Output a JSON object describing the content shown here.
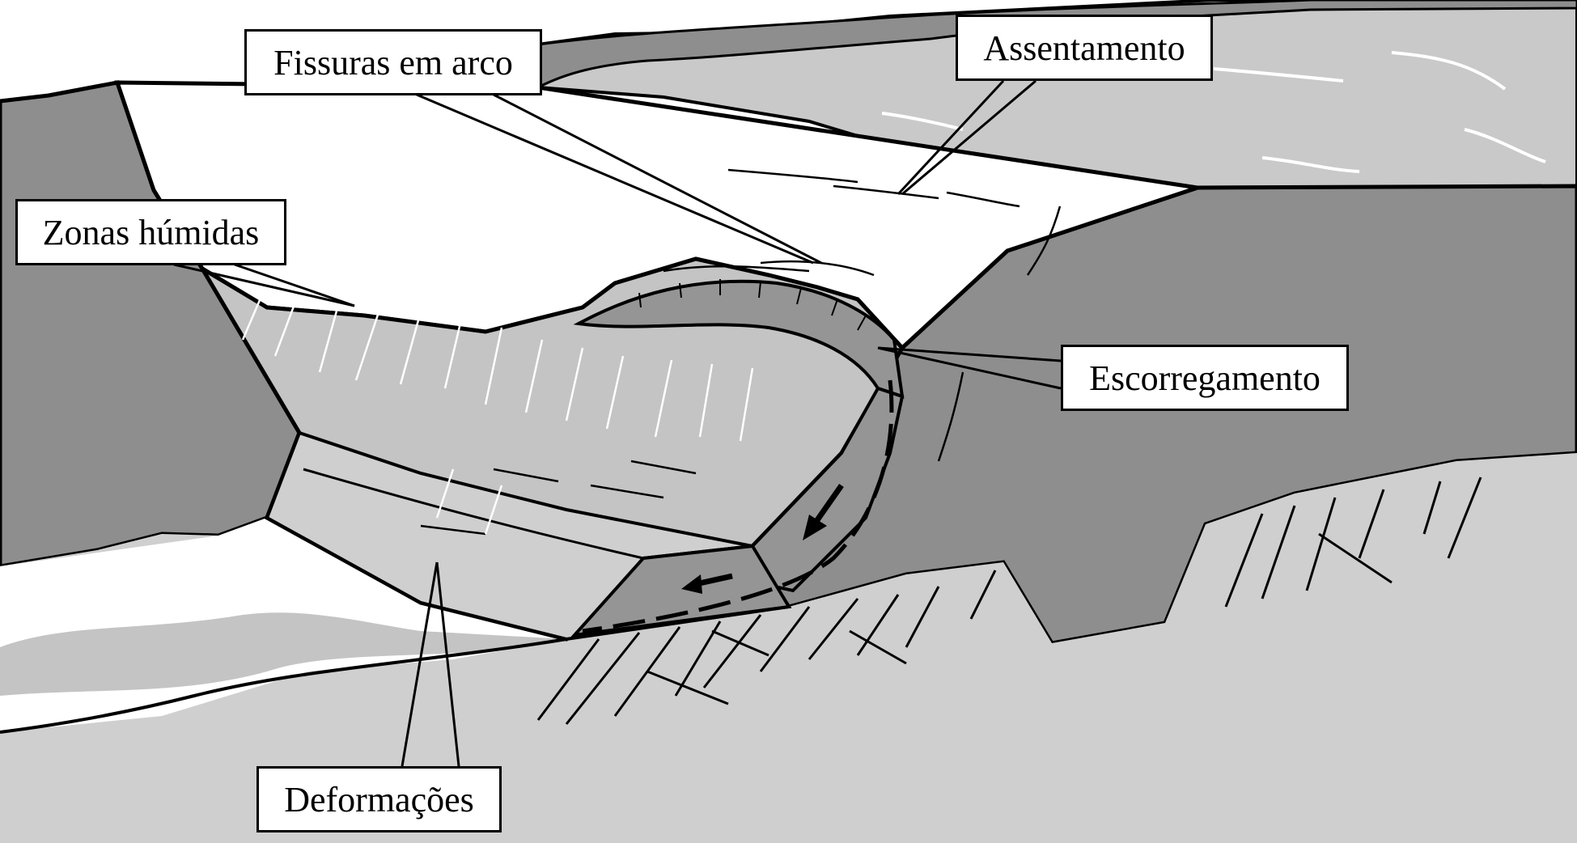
{
  "labels": {
    "fissuras": "Fissuras em arco",
    "assentamento": "Assentamento",
    "zonas": "Zonas húmidas",
    "escorregamento": "Escorregamento",
    "deformacoes": "Deformações"
  },
  "colors": {
    "background": "#ffffff",
    "water": "#c9c9c9",
    "ground": "#cfcfcf",
    "abutment": "#8e8e8e",
    "dam_crest": "#ffffff",
    "dam_face": "#c4c4c4",
    "slide_block": "#959595",
    "outline": "#000000"
  }
}
